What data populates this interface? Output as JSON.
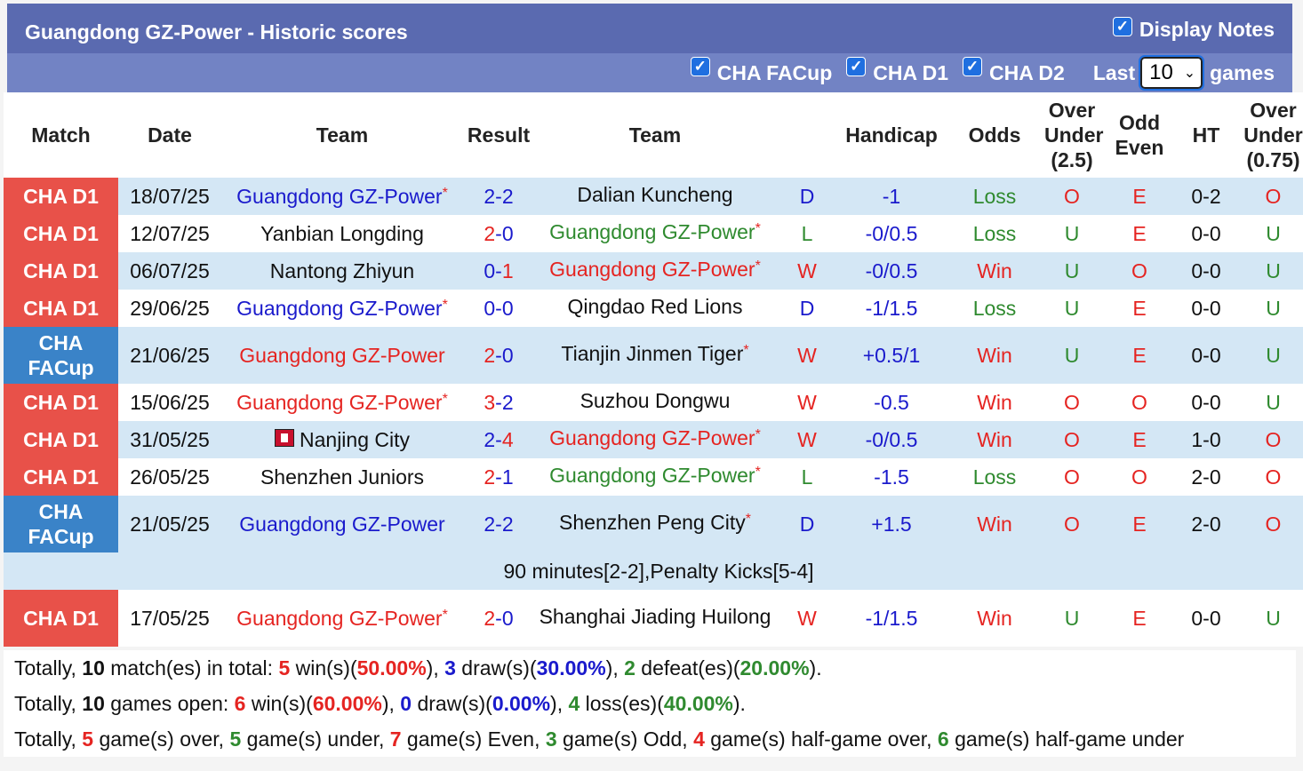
{
  "header": {
    "title": "Guangdong GZ-Power - Historic scores",
    "display_notes": "Display Notes",
    "filters": [
      "CHA FACup",
      "CHA D1",
      "CHA D2"
    ],
    "last_label": "Last",
    "last_value": "10",
    "games_label": "games"
  },
  "columns": [
    "Match",
    "Date",
    "Team",
    "Result",
    "Team",
    "Handicap",
    "Odds",
    "Over Under (2.5)",
    "Odd Even",
    "HT",
    "Over Under (0.75)"
  ],
  "rows": [
    {
      "league": "CHA D1",
      "date": "18/07/25",
      "home": "Guangdong GZ-Power",
      "home_star": "*",
      "hs": "2",
      "as": "2",
      "away": "Dalian Kuncheng",
      "away_star": "",
      "wl": "D",
      "handicap": "-1",
      "odds": "Loss",
      "ou": "O",
      "oe": "E",
      "ht": "0-2",
      "ou2": "O"
    },
    {
      "league": "CHA D1",
      "date": "12/07/25",
      "home": "Yanbian Longding",
      "home_star": "",
      "hs": "2",
      "as": "0",
      "away": "Guangdong GZ-Power",
      "away_star": "*",
      "wl": "L",
      "handicap": "-0/0.5",
      "odds": "Loss",
      "ou": "U",
      "oe": "E",
      "ht": "0-0",
      "ou2": "U"
    },
    {
      "league": "CHA D1",
      "date": "06/07/25",
      "home": "Nantong Zhiyun",
      "home_star": "",
      "hs": "0",
      "as": "1",
      "away": "Guangdong GZ-Power",
      "away_star": "*",
      "wl": "W",
      "handicap": "-0/0.5",
      "odds": "Win",
      "ou": "U",
      "oe": "O",
      "ht": "0-0",
      "ou2": "U"
    },
    {
      "league": "CHA D1",
      "date": "29/06/25",
      "home": "Guangdong GZ-Power",
      "home_star": "*",
      "hs": "0",
      "as": "0",
      "away": "Qingdao Red Lions",
      "away_star": "",
      "wl": "D",
      "handicap": "-1/1.5",
      "odds": "Loss",
      "ou": "U",
      "oe": "E",
      "ht": "0-0",
      "ou2": "U"
    },
    {
      "league": "CHA FACup",
      "date": "21/06/25",
      "home": "Guangdong GZ-Power",
      "home_star": "",
      "hs": "2",
      "as": "0",
      "away": "Tianjin Jinmen Tiger",
      "away_star": "*",
      "wl": "W",
      "handicap": "+0.5/1",
      "odds": "Win",
      "ou": "U",
      "oe": "E",
      "ht": "0-0",
      "ou2": "U"
    },
    {
      "league": "CHA D1",
      "date": "15/06/25",
      "home": "Guangdong GZ-Power",
      "home_star": "*",
      "hs": "3",
      "as": "2",
      "away": "Suzhou Dongwu",
      "away_star": "",
      "wl": "W",
      "handicap": "-0.5",
      "odds": "Win",
      "ou": "O",
      "oe": "O",
      "ht": "0-0",
      "ou2": "U"
    },
    {
      "league": "CHA D1",
      "date": "31/05/25",
      "home": "Nanjing City",
      "home_star": "",
      "hs": "2",
      "as": "4",
      "away": "Guangdong GZ-Power",
      "away_star": "*",
      "wl": "W",
      "handicap": "-0/0.5",
      "odds": "Win",
      "ou": "O",
      "oe": "E",
      "ht": "1-0",
      "ou2": "O"
    },
    {
      "league": "CHA D1",
      "date": "26/05/25",
      "home": "Shenzhen Juniors",
      "home_star": "",
      "hs": "2",
      "as": "1",
      "away": "Guangdong GZ-Power",
      "away_star": "*",
      "wl": "L",
      "handicap": "-1.5",
      "odds": "Loss",
      "ou": "O",
      "oe": "O",
      "ht": "2-0",
      "ou2": "O"
    },
    {
      "league": "CHA FACup",
      "date": "21/05/25",
      "home": "Guangdong GZ-Power",
      "home_star": "",
      "hs": "2",
      "as": "2",
      "away": "Shenzhen Peng City",
      "away_star": "*",
      "wl": "D",
      "handicap": "+1.5",
      "odds": "Win",
      "ou": "O",
      "oe": "E",
      "ht": "2-0",
      "ou2": "O"
    },
    {
      "league": "CHA D1",
      "date": "17/05/25",
      "home": "Guangdong GZ-Power",
      "home_star": "*",
      "hs": "2",
      "as": "0",
      "away": "Shanghai Jiading Huilong",
      "away_star": "",
      "wl": "W",
      "handicap": "-1/1.5",
      "odds": "Win",
      "ou": "U",
      "oe": "E",
      "ht": "0-0",
      "ou2": "U"
    }
  ],
  "note_row": "90 minutes[2-2],Penalty Kicks[5-4]",
  "summary": {
    "line1": {
      "p1": "Totally, ",
      "n": "10",
      "p2": " match(es) in total: ",
      "w": "5",
      "p3": " win(s)(",
      "wp": "50.00%",
      "p4": "), ",
      "d": "3",
      "p5": " draw(s)(",
      "dp": "30.00%",
      "p6": "), ",
      "l": "2",
      "p7": " defeat(es)(",
      "lp": "20.00%",
      "p8": ")."
    },
    "line2": {
      "p1": "Totally, ",
      "n": "10",
      "p2": " games open: ",
      "w": "6",
      "p3": " win(s)(",
      "wp": "60.00%",
      "p4": "), ",
      "d": "0",
      "p5": " draw(s)(",
      "dp": "0.00%",
      "p6": "), ",
      "l": "4",
      "p7": " loss(es)(",
      "lp": "40.00%",
      "p8": ")."
    },
    "line3": {
      "p1": "Totally, ",
      "over": "5",
      "p2": " game(s) over, ",
      "under": "5",
      "p3": " game(s) under, ",
      "even": "7",
      "p4": " game(s) Even, ",
      "odd": "3",
      "p5": " game(s) Odd, ",
      "hgo": "4",
      "p6": " game(s) half-game over, ",
      "hgu": "6",
      "p7": " game(s) half-game under"
    }
  },
  "colors": {
    "blue": "#1a1acc",
    "red": "#e52421",
    "green": "#2f8a2f",
    "d1": "#e85149",
    "facup": "#3a83c8",
    "header": "#5a6ab0"
  }
}
